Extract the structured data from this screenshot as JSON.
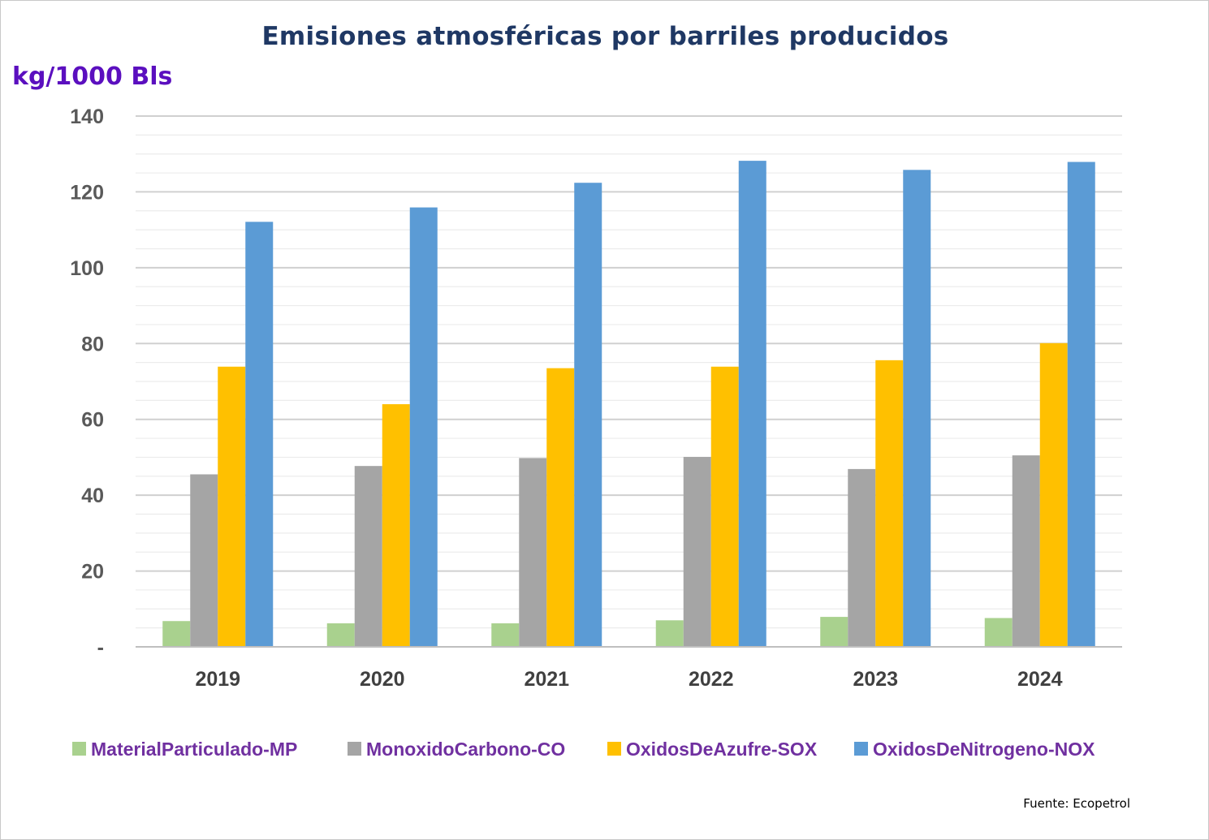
{
  "title": "Emisiones atmosféricas por barriles producidos",
  "unit_label": "kg/1000 Bls",
  "source": "Fuente: Ecopetrol",
  "colors": {
    "title": "#1f3864",
    "unit": "#5b0fbf",
    "legend_text": "#7030a0",
    "gridline": "#d9d9d9",
    "axis": "#bfbfbf"
  },
  "chart_data": {
    "type": "bar",
    "title": "Emisiones atmosféricas por barriles producidos",
    "ylabel": "kg/1000 Bls",
    "xlabel": "",
    "categories": [
      "2019",
      "2020",
      "2021",
      "2022",
      "2023",
      "2024"
    ],
    "ylim": [
      0,
      140
    ],
    "y_ticks": [
      0,
      20,
      40,
      60,
      80,
      100,
      120,
      140
    ],
    "y_tick_labels": [
      "-",
      "20",
      "40",
      "60",
      "80",
      "100",
      "120",
      "140"
    ],
    "minor_gridlines_step": 5,
    "grid": true,
    "legend_position": "bottom",
    "series": [
      {
        "name": "MaterialParticulado-MP",
        "color": "#a9d18e",
        "values": [
          6.8,
          6.2,
          6.2,
          7.0,
          7.9,
          7.6
        ]
      },
      {
        "name": "MonoxidoCarbono-CO",
        "color": "#a5a5a5",
        "values": [
          45.5,
          47.7,
          49.8,
          50.1,
          46.9,
          50.5
        ]
      },
      {
        "name": "OxidosDeAzufre-SOX",
        "color": "#ffc000",
        "values": [
          73.9,
          64.0,
          73.5,
          73.9,
          75.6,
          80.1
        ]
      },
      {
        "name": "OxidosDeNitrogeno-NOX",
        "color": "#5b9bd5",
        "values": [
          112.1,
          115.9,
          122.4,
          128.2,
          125.8,
          127.9
        ]
      }
    ]
  }
}
